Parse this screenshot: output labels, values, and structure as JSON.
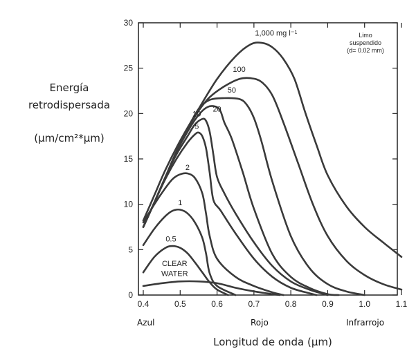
{
  "y_title_line1": "Energía",
  "y_title_line2": "retrodispersada",
  "y_unit": "(µm/cm²*µm)",
  "x_title": "Longitud de onda (µm)",
  "region_labels": [
    "Azul",
    "Rojo",
    "Infrarrojo"
  ],
  "note": [
    "Limo",
    "suspendido",
    "(d= 0.02 mm)"
  ],
  "chart_data": {
    "type": "line",
    "title": "",
    "xlabel": "Longitud de onda (µm)",
    "ylabel": "Energía retrodispersada (µm/cm²*µm)",
    "xlim": [
      0.4,
      1.1
    ],
    "ylim": [
      0,
      30
    ],
    "xticks": [
      "0.4",
      "0.5",
      "0.6",
      "0.7",
      "0.8",
      "0.9",
      "1.0",
      "1.1"
    ],
    "yticks": [
      "0",
      "5",
      "10",
      "15",
      "20",
      "25",
      "30"
    ],
    "grid": false,
    "series": [
      {
        "name": "CLEAR WATER",
        "points": [
          [
            0.4,
            1.0
          ],
          [
            0.45,
            1.3
          ],
          [
            0.5,
            1.5
          ],
          [
            0.55,
            1.5
          ],
          [
            0.6,
            1.3
          ],
          [
            0.65,
            0.8
          ],
          [
            0.7,
            0.4
          ],
          [
            0.75,
            0.1
          ],
          [
            0.77,
            0.0
          ]
        ]
      },
      {
        "name": "0.5",
        "points": [
          [
            0.4,
            2.5
          ],
          [
            0.43,
            4.2
          ],
          [
            0.46,
            5.2
          ],
          [
            0.48,
            5.4
          ],
          [
            0.5,
            5.2
          ],
          [
            0.52,
            4.6
          ],
          [
            0.54,
            3.6
          ],
          [
            0.56,
            2.5
          ],
          [
            0.58,
            1.4
          ],
          [
            0.6,
            0.6
          ],
          [
            0.63,
            0.0
          ]
        ]
      },
      {
        "name": "1",
        "points": [
          [
            0.4,
            5.5
          ],
          [
            0.43,
            7.3
          ],
          [
            0.46,
            8.7
          ],
          [
            0.48,
            9.3
          ],
          [
            0.5,
            9.4
          ],
          [
            0.52,
            9.0
          ],
          [
            0.54,
            8.0
          ],
          [
            0.56,
            6.3
          ],
          [
            0.57,
            4.6
          ],
          [
            0.58,
            2.4
          ],
          [
            0.6,
            1.0
          ],
          [
            0.65,
            0.0
          ]
        ]
      },
      {
        "name": "2",
        "points": [
          [
            0.4,
            8.0
          ],
          [
            0.43,
            10.0
          ],
          [
            0.46,
            11.8
          ],
          [
            0.48,
            12.8
          ],
          [
            0.5,
            13.3
          ],
          [
            0.52,
            13.4
          ],
          [
            0.54,
            12.9
          ],
          [
            0.56,
            11.2
          ],
          [
            0.57,
            9.0
          ],
          [
            0.58,
            6.5
          ],
          [
            0.6,
            4.0
          ],
          [
            0.65,
            2.0
          ],
          [
            0.7,
            1.0
          ],
          [
            0.75,
            0.3
          ],
          [
            0.78,
            0.0
          ]
        ]
      },
      {
        "name": "5",
        "points": [
          [
            0.4,
            7.5
          ],
          [
            0.43,
            10.2
          ],
          [
            0.46,
            12.8
          ],
          [
            0.49,
            15.0
          ],
          [
            0.52,
            16.8
          ],
          [
            0.54,
            17.7
          ],
          [
            0.55,
            17.9
          ],
          [
            0.56,
            17.5
          ],
          [
            0.57,
            16.2
          ],
          [
            0.58,
            13.5
          ],
          [
            0.59,
            10.5
          ],
          [
            0.61,
            9.3
          ],
          [
            0.65,
            6.8
          ],
          [
            0.7,
            4.0
          ],
          [
            0.75,
            2.0
          ],
          [
            0.8,
            0.8
          ],
          [
            0.85,
            0.2
          ],
          [
            0.87,
            0.0
          ]
        ]
      },
      {
        "name": "10",
        "points": [
          [
            0.4,
            7.5
          ],
          [
            0.43,
            10.2
          ],
          [
            0.46,
            13.0
          ],
          [
            0.49,
            15.5
          ],
          [
            0.52,
            17.5
          ],
          [
            0.54,
            18.8
          ],
          [
            0.56,
            19.4
          ],
          [
            0.57,
            19.2
          ],
          [
            0.58,
            18.0
          ],
          [
            0.59,
            15.5
          ],
          [
            0.6,
            13.0
          ],
          [
            0.62,
            11.2
          ],
          [
            0.65,
            9.0
          ],
          [
            0.7,
            5.8
          ],
          [
            0.75,
            3.2
          ],
          [
            0.8,
            1.5
          ],
          [
            0.85,
            0.6
          ],
          [
            0.9,
            0.0
          ]
        ]
      },
      {
        "name": "20",
        "points": [
          [
            0.4,
            7.5
          ],
          [
            0.43,
            10.2
          ],
          [
            0.46,
            13.0
          ],
          [
            0.49,
            15.8
          ],
          [
            0.52,
            18.0
          ],
          [
            0.54,
            19.3
          ],
          [
            0.56,
            20.3
          ],
          [
            0.58,
            20.8
          ],
          [
            0.6,
            20.7
          ],
          [
            0.61,
            20.2
          ],
          [
            0.62,
            19.0
          ],
          [
            0.64,
            17.2
          ],
          [
            0.67,
            13.5
          ],
          [
            0.7,
            9.5
          ],
          [
            0.75,
            4.5
          ],
          [
            0.8,
            2.0
          ],
          [
            0.85,
            0.8
          ],
          [
            0.9,
            0.1
          ],
          [
            0.93,
            0.0
          ]
        ]
      },
      {
        "name": "50",
        "points": [
          [
            0.4,
            7.5
          ],
          [
            0.43,
            10.2
          ],
          [
            0.46,
            13.0
          ],
          [
            0.49,
            15.8
          ],
          [
            0.52,
            18.3
          ],
          [
            0.55,
            20.5
          ],
          [
            0.58,
            21.5
          ],
          [
            0.62,
            21.7
          ],
          [
            0.66,
            21.6
          ],
          [
            0.68,
            21.0
          ],
          [
            0.7,
            19.5
          ],
          [
            0.72,
            17.0
          ],
          [
            0.75,
            12.5
          ],
          [
            0.8,
            6.5
          ],
          [
            0.85,
            3.0
          ],
          [
            0.9,
            1.2
          ],
          [
            0.95,
            0.4
          ],
          [
            1.0,
            0.0
          ]
        ]
      },
      {
        "name": "100",
        "points": [
          [
            0.4,
            7.5
          ],
          [
            0.43,
            10.2
          ],
          [
            0.46,
            13.0
          ],
          [
            0.49,
            15.8
          ],
          [
            0.52,
            18.3
          ],
          [
            0.55,
            20.3
          ],
          [
            0.58,
            21.8
          ],
          [
            0.62,
            23.0
          ],
          [
            0.66,
            23.8
          ],
          [
            0.69,
            23.9
          ],
          [
            0.72,
            23.5
          ],
          [
            0.75,
            22.0
          ],
          [
            0.78,
            19.0
          ],
          [
            0.82,
            14.5
          ],
          [
            0.86,
            10.0
          ],
          [
            0.9,
            6.5
          ],
          [
            0.95,
            3.8
          ],
          [
            1.0,
            2.2
          ],
          [
            1.05,
            1.2
          ],
          [
            1.1,
            0.6
          ]
        ]
      },
      {
        "name": "1,000 mg l⁻¹",
        "points": [
          [
            0.4,
            8.2
          ],
          [
            0.43,
            11.0
          ],
          [
            0.46,
            13.8
          ],
          [
            0.5,
            17.0
          ],
          [
            0.55,
            20.5
          ],
          [
            0.6,
            23.8
          ],
          [
            0.65,
            26.3
          ],
          [
            0.69,
            27.6
          ],
          [
            0.72,
            27.8
          ],
          [
            0.75,
            27.3
          ],
          [
            0.78,
            26.0
          ],
          [
            0.81,
            23.8
          ],
          [
            0.84,
            20.0
          ],
          [
            0.87,
            16.5
          ],
          [
            0.9,
            13.2
          ],
          [
            0.95,
            9.8
          ],
          [
            1.0,
            7.5
          ],
          [
            1.05,
            5.8
          ],
          [
            1.1,
            4.2
          ]
        ]
      }
    ],
    "curve_labels": [
      {
        "text": "1,000 mg l⁻¹",
        "x": 0.76,
        "y": 28.6
      },
      {
        "text": "100",
        "x": 0.66,
        "y": 24.6
      },
      {
        "text": "50",
        "x": 0.64,
        "y": 22.3
      },
      {
        "text": "20",
        "x": 0.6,
        "y": 20.2
      },
      {
        "text": "10",
        "x": 0.545,
        "y": 19.7
      },
      {
        "text": "5",
        "x": 0.545,
        "y": 18.3
      },
      {
        "text": "2",
        "x": 0.52,
        "y": 13.8
      },
      {
        "text": "1",
        "x": 0.5,
        "y": 9.9
      },
      {
        "text": "0.5",
        "x": 0.475,
        "y": 5.9
      },
      {
        "text": "CLEAR",
        "x": 0.485,
        "y": 3.2
      },
      {
        "text": "WATER",
        "x": 0.485,
        "y": 2.1
      }
    ]
  }
}
